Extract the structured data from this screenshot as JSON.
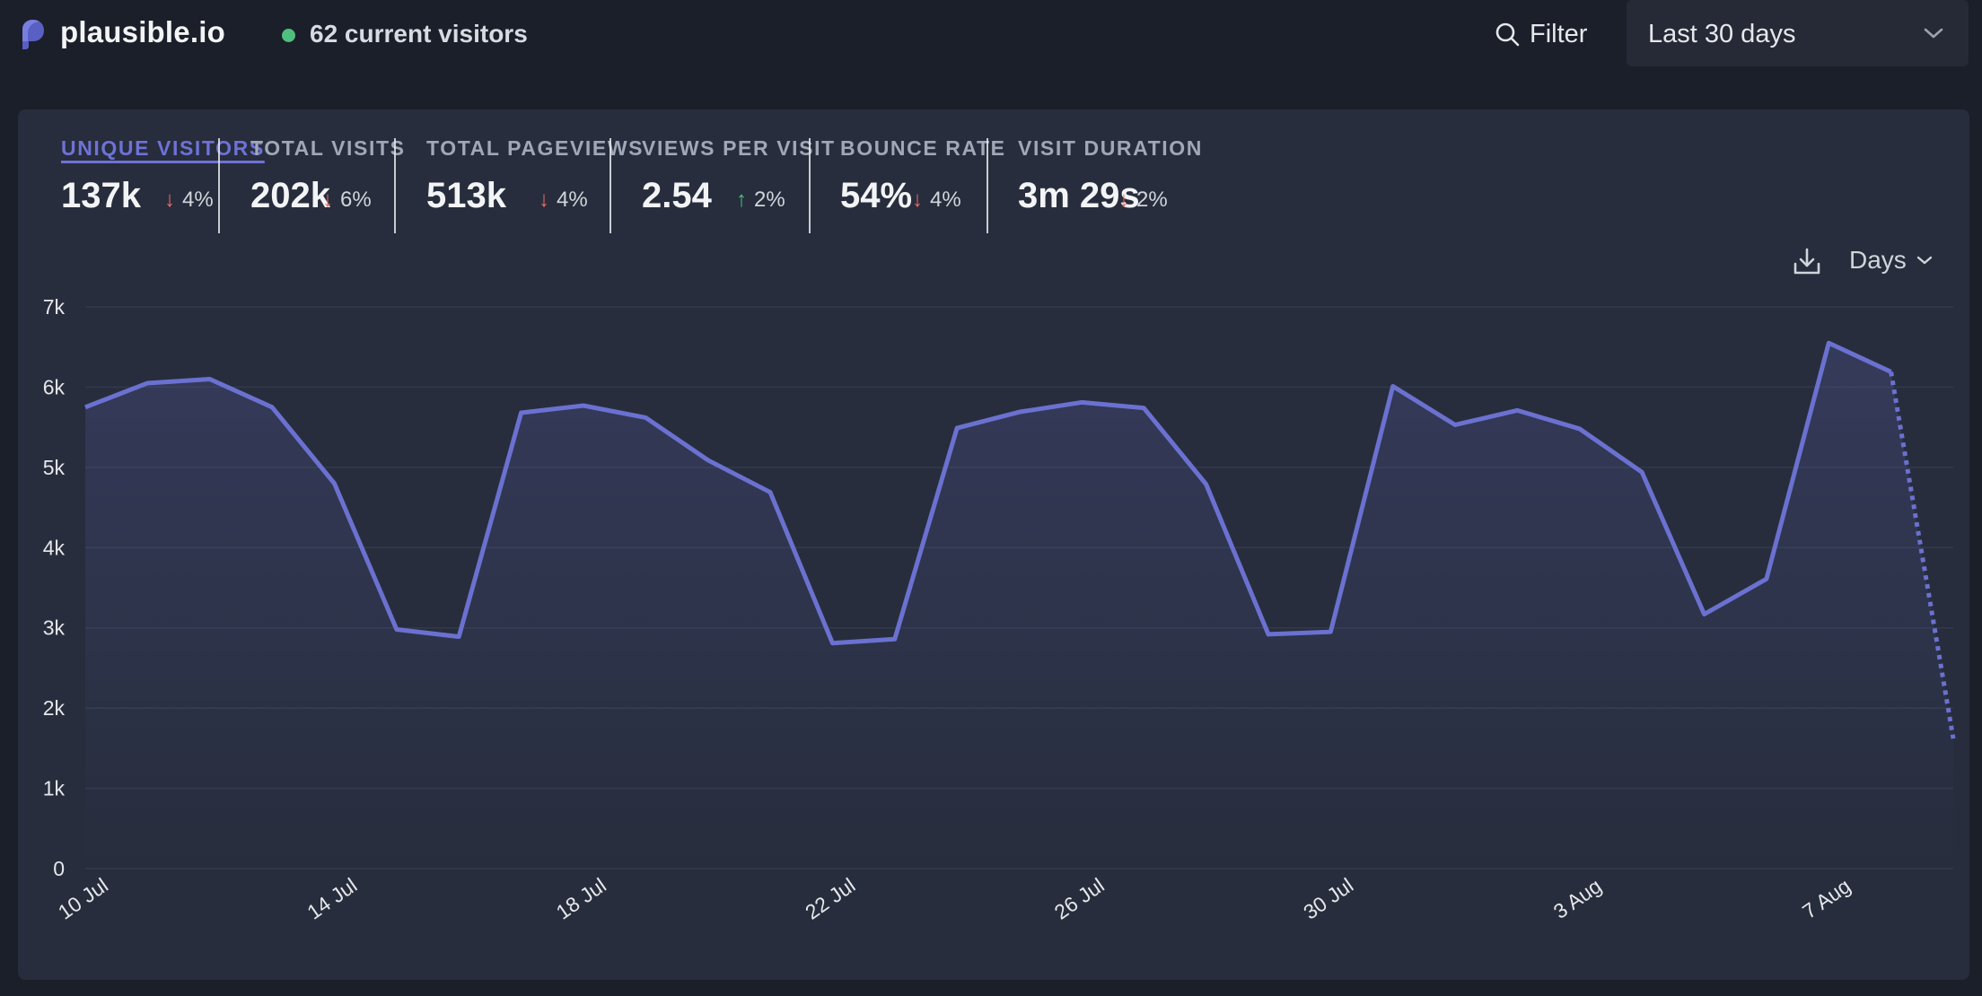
{
  "header": {
    "brand": "plausible.io",
    "current_visitors": "62 current visitors",
    "filter_label": "Filter",
    "period_label": "Last 30 days",
    "icons": {
      "logo": "plausible-logo-icon",
      "search": "search-icon",
      "period_chevron": "chevron-down-icon"
    }
  },
  "stats": [
    {
      "label": "UNIQUE VISITORS",
      "value": "137k",
      "change": "4%",
      "direction": "down",
      "active": true
    },
    {
      "label": "TOTAL VISITS",
      "value": "202k",
      "change": "6%",
      "direction": "down",
      "active": false
    },
    {
      "label": "TOTAL PAGEVIEWS",
      "value": "513k",
      "change": "4%",
      "direction": "down",
      "active": false
    },
    {
      "label": "VIEWS PER VISIT",
      "value": "2.54",
      "change": "2%",
      "direction": "up",
      "active": false
    },
    {
      "label": "BOUNCE RATE",
      "value": "54%",
      "change": "4%",
      "direction": "down",
      "active": false
    },
    {
      "label": "VISIT DURATION",
      "value": "3m 29s",
      "change": "2%",
      "direction": "down",
      "active": false
    }
  ],
  "chart_controls": {
    "interval_label": "Days",
    "icons": {
      "download": "download-icon",
      "interval_chevron": "chevron-down-icon"
    }
  },
  "colors": {
    "accent": "#6e72d6",
    "line": "#6b71d0",
    "down": "#ef6c63",
    "up": "#4fbf7d",
    "live": "#4fbf7d"
  },
  "chart_data": {
    "type": "line",
    "title": "",
    "xlabel": "",
    "ylabel": "",
    "ylim": [
      0,
      7000
    ],
    "y_ticks": [
      "0",
      "1k",
      "2k",
      "3k",
      "4k",
      "5k",
      "6k",
      "7k"
    ],
    "x_tick_labels": [
      "10 Jul",
      "14 Jul",
      "18 Jul",
      "22 Jul",
      "26 Jul",
      "30 Jul",
      "3 Aug",
      "7 Aug"
    ],
    "grid": true,
    "x": [
      "10 Jul",
      "11 Jul",
      "12 Jul",
      "13 Jul",
      "14 Jul",
      "15 Jul",
      "16 Jul",
      "17 Jul",
      "18 Jul",
      "19 Jul",
      "20 Jul",
      "21 Jul",
      "22 Jul",
      "23 Jul",
      "24 Jul",
      "25 Jul",
      "26 Jul",
      "27 Jul",
      "28 Jul",
      "29 Jul",
      "30 Jul",
      "31 Jul",
      "1 Aug",
      "2 Aug",
      "3 Aug",
      "4 Aug",
      "5 Aug",
      "6 Aug",
      "7 Aug",
      "8 Aug",
      "9 Aug"
    ],
    "series": [
      {
        "values": [
          5750,
          6050,
          6100,
          5750,
          4800,
          2980,
          2890,
          5680,
          5770,
          5620,
          5090,
          4690,
          2810,
          2860,
          5490,
          5690,
          5810,
          5740,
          4790,
          2920,
          2950,
          6010,
          5530,
          5710,
          5480,
          4940,
          3170,
          3610,
          6550,
          6190,
          1620
        ],
        "dashed_from_index": 29
      }
    ]
  }
}
